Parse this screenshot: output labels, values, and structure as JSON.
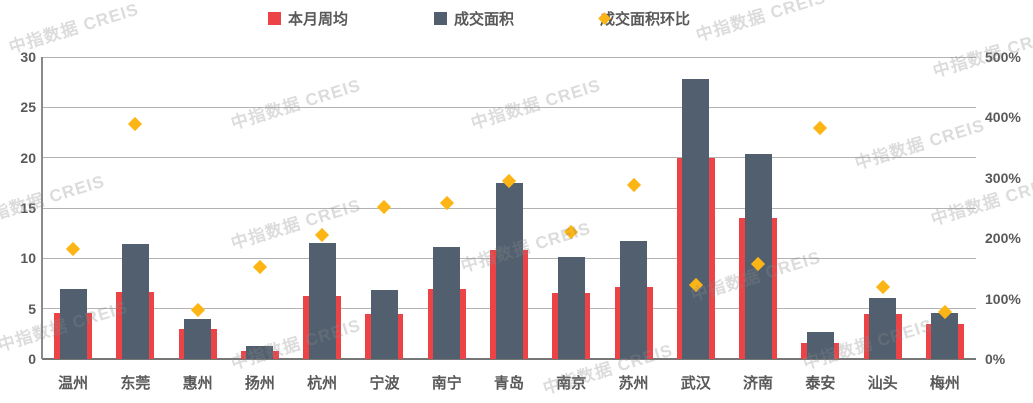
{
  "watermark": {
    "text": "中指数据 CREIS"
  },
  "chart_data": {
    "type": "bar",
    "subtype": "combo-bar-scatter",
    "title": "",
    "categories": [
      "温州",
      "东莞",
      "惠州",
      "扬州",
      "杭州",
      "宁波",
      "南宁",
      "青岛",
      "南京",
      "苏州",
      "武汉",
      "济南",
      "泰安",
      "汕头",
      "梅州"
    ],
    "series": [
      {
        "name": "本月周均",
        "type": "bar",
        "axis": "left",
        "color": "#ec4347",
        "values": [
          4.6,
          6.7,
          3.0,
          0.8,
          6.3,
          4.5,
          7.0,
          10.8,
          6.6,
          7.2,
          20.0,
          14.0,
          1.6,
          4.5,
          3.5
        ]
      },
      {
        "name": "成交面积",
        "type": "bar",
        "axis": "left",
        "color": "#515f6f",
        "values": [
          7.0,
          11.4,
          4.0,
          1.3,
          11.5,
          6.9,
          11.1,
          17.5,
          10.1,
          11.7,
          27.8,
          20.4,
          2.7,
          6.1,
          4.6
        ]
      },
      {
        "name": "成交面积环比",
        "type": "scatter",
        "marker": "diamond",
        "axis": "right",
        "color": "#fcb514",
        "values": [
          182,
          389,
          81,
          153,
          205,
          251,
          259,
          295,
          211,
          288,
          122,
          157,
          382,
          119,
          77
        ]
      }
    ],
    "left_axis": {
      "min": 0,
      "max": 30,
      "step": 5,
      "ticks": [
        "0",
        "5",
        "10",
        "15",
        "20",
        "25",
        "30"
      ]
    },
    "right_axis": {
      "min": 0,
      "max": 500,
      "step": 100,
      "ticks": [
        "0%",
        "100%",
        "200%",
        "300%",
        "400%",
        "500%"
      ]
    },
    "grid": true,
    "legend_position": "top-center"
  }
}
